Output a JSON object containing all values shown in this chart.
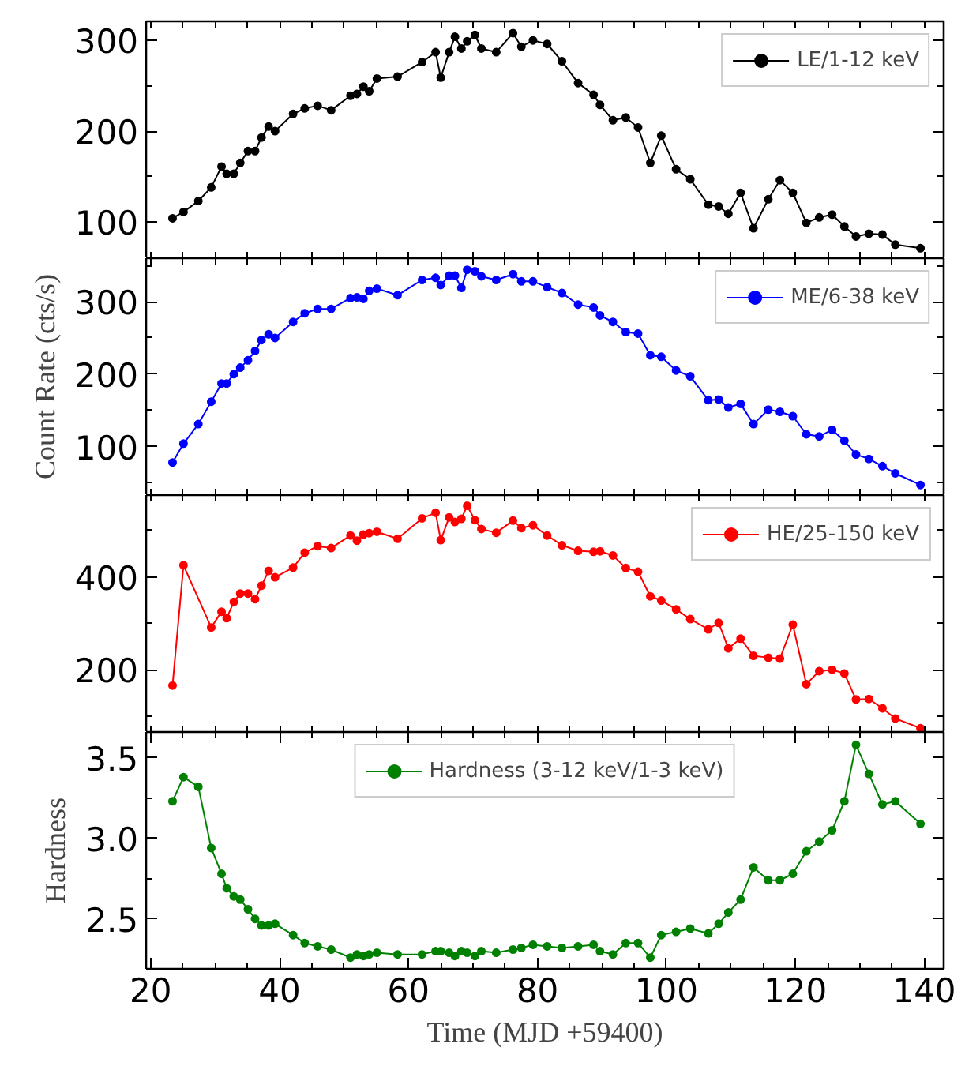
{
  "chart_data": [
    {
      "type": "line",
      "marker": "circle",
      "legend": "top right",
      "grid": false,
      "tick_labels": "y",
      "xlim": [
        19.3,
        143
      ],
      "ylim": [
        60,
        321
      ],
      "xticks": [
        {
          "value": 20,
          "label": null
        },
        {
          "value": 25,
          "label": null
        },
        {
          "value": 30,
          "label": null
        },
        {
          "value": 35,
          "label": null
        },
        {
          "value": 40,
          "label": null
        },
        {
          "value": 45,
          "label": null
        },
        {
          "value": 50,
          "label": null
        },
        {
          "value": 55,
          "label": null
        },
        {
          "value": 60,
          "label": null
        },
        {
          "value": 65,
          "label": null
        },
        {
          "value": 70,
          "label": null
        },
        {
          "value": 75,
          "label": null
        },
        {
          "value": 80,
          "label": null
        },
        {
          "value": 85,
          "label": null
        },
        {
          "value": 90,
          "label": null
        },
        {
          "value": 95,
          "label": null
        },
        {
          "value": 100,
          "label": null
        },
        {
          "value": 105,
          "label": null
        },
        {
          "value": 110,
          "label": null
        },
        {
          "value": 115,
          "label": null
        },
        {
          "value": 120,
          "label": null
        },
        {
          "value": 125,
          "label": null
        },
        {
          "value": 130,
          "label": null
        },
        {
          "value": 135,
          "label": null
        },
        {
          "value": 140,
          "label": null
        }
      ],
      "yticks": [
        {
          "value": 100,
          "label": "100"
        },
        {
          "value": 150,
          "label": null
        },
        {
          "value": 200,
          "label": "200"
        },
        {
          "value": 250,
          "label": null
        },
        {
          "value": 300,
          "label": "300"
        }
      ],
      "x": [
        23.4,
        25.1,
        27.4,
        29.4,
        31.0,
        31.8,
        32.9,
        33.9,
        35.1,
        36.2,
        37.2,
        38.3,
        39.3,
        42.1,
        43.9,
        45.9,
        48.0,
        51.0,
        52.0,
        53.0,
        53.9,
        55.1,
        58.3,
        62.1,
        64.2,
        65.0,
        66.3,
        67.2,
        68.2,
        69.1,
        70.3,
        71.3,
        73.6,
        76.2,
        77.5,
        79.3,
        81.5,
        83.8,
        86.3,
        88.7,
        89.7,
        91.7,
        93.7,
        95.6,
        97.5,
        99.2,
        101.5,
        103.7,
        106.5,
        108.1,
        109.6,
        111.5,
        113.5,
        115.8,
        117.6,
        119.6,
        121.7,
        123.7,
        125.7,
        127.6,
        129.4,
        131.4,
        133.5,
        135.5,
        139.4
      ],
      "series": [
        {
          "name": "LE/1-12 keV",
          "color": "#000000",
          "values": [
            104,
            111,
            123,
            138,
            161,
            153,
            153,
            165,
            178,
            178,
            193,
            205,
            200,
            219,
            225,
            228,
            223,
            239,
            241,
            249,
            244,
            258,
            260,
            276,
            287,
            259,
            287,
            304,
            291,
            299,
            306,
            291,
            287,
            308,
            293,
            300,
            296,
            277,
            253,
            240,
            229,
            212,
            215,
            204,
            165,
            195,
            158,
            147,
            119,
            117,
            109,
            132,
            93,
            125,
            146,
            132,
            99,
            105,
            108,
            95,
            84,
            87,
            86,
            75,
            71
          ]
        }
      ]
    },
    {
      "type": "line",
      "marker": "circle",
      "legend": "top right",
      "grid": false,
      "tick_labels": "y",
      "ylabel": "Count Rate (cts/s)",
      "xlim": [
        19.3,
        143
      ],
      "ylim": [
        33,
        360
      ],
      "xticks": [
        {
          "value": 20,
          "label": null
        },
        {
          "value": 25,
          "label": null
        },
        {
          "value": 30,
          "label": null
        },
        {
          "value": 35,
          "label": null
        },
        {
          "value": 40,
          "label": null
        },
        {
          "value": 45,
          "label": null
        },
        {
          "value": 50,
          "label": null
        },
        {
          "value": 55,
          "label": null
        },
        {
          "value": 60,
          "label": null
        },
        {
          "value": 65,
          "label": null
        },
        {
          "value": 70,
          "label": null
        },
        {
          "value": 75,
          "label": null
        },
        {
          "value": 80,
          "label": null
        },
        {
          "value": 85,
          "label": null
        },
        {
          "value": 90,
          "label": null
        },
        {
          "value": 95,
          "label": null
        },
        {
          "value": 100,
          "label": null
        },
        {
          "value": 105,
          "label": null
        },
        {
          "value": 110,
          "label": null
        },
        {
          "value": 115,
          "label": null
        },
        {
          "value": 120,
          "label": null
        },
        {
          "value": 125,
          "label": null
        },
        {
          "value": 130,
          "label": null
        },
        {
          "value": 135,
          "label": null
        },
        {
          "value": 140,
          "label": null
        }
      ],
      "yticks": [
        {
          "value": 50,
          "label": null
        },
        {
          "value": 100,
          "label": "100"
        },
        {
          "value": 150,
          "label": null
        },
        {
          "value": 200,
          "label": "200"
        },
        {
          "value": 250,
          "label": null
        },
        {
          "value": 300,
          "label": "300"
        },
        {
          "value": 350,
          "label": null
        }
      ],
      "x": [
        23.4,
        25.1,
        27.4,
        29.4,
        31.0,
        31.8,
        32.9,
        33.9,
        35.1,
        36.2,
        37.2,
        38.3,
        39.3,
        42.1,
        43.9,
        45.9,
        48.0,
        51.0,
        52.0,
        53.0,
        53.9,
        55.1,
        58.3,
        62.1,
        64.2,
        65.0,
        66.3,
        67.2,
        68.2,
        69.1,
        70.3,
        71.3,
        73.6,
        76.2,
        77.5,
        79.3,
        81.5,
        83.8,
        86.3,
        88.7,
        89.7,
        91.7,
        93.7,
        95.6,
        97.5,
        99.2,
        101.5,
        103.7,
        106.5,
        108.1,
        109.6,
        111.5,
        113.5,
        115.8,
        117.6,
        119.6,
        121.7,
        123.7,
        125.7,
        127.6,
        129.4,
        131.4,
        133.5,
        135.5,
        139.4
      ],
      "series": [
        {
          "name": "ME/6-38 keV",
          "color": "#0000ff",
          "values": [
            78,
            104,
            131,
            162,
            187,
            187,
            200,
            209,
            219,
            232,
            247,
            255,
            250,
            272,
            284,
            290,
            290,
            305,
            306,
            304,
            315,
            318,
            309,
            330,
            333,
            323,
            336,
            336,
            319,
            344,
            342,
            335,
            330,
            338,
            328,
            328,
            320,
            312,
            296,
            292,
            281,
            272,
            258,
            256,
            226,
            224,
            205,
            197,
            164,
            165,
            154,
            159,
            131,
            151,
            148,
            142,
            117,
            114,
            123,
            108,
            89,
            83,
            73,
            63,
            47
          ]
        }
      ]
    },
    {
      "type": "line",
      "marker": "circle",
      "legend": "top right",
      "grid": false,
      "tick_labels": "y",
      "xlim": [
        19.3,
        143
      ],
      "ylim": [
        66,
        576
      ],
      "xticks": [
        {
          "value": 20,
          "label": null
        },
        {
          "value": 25,
          "label": null
        },
        {
          "value": 30,
          "label": null
        },
        {
          "value": 35,
          "label": null
        },
        {
          "value": 40,
          "label": null
        },
        {
          "value": 45,
          "label": null
        },
        {
          "value": 50,
          "label": null
        },
        {
          "value": 55,
          "label": null
        },
        {
          "value": 60,
          "label": null
        },
        {
          "value": 65,
          "label": null
        },
        {
          "value": 70,
          "label": null
        },
        {
          "value": 75,
          "label": null
        },
        {
          "value": 80,
          "label": null
        },
        {
          "value": 85,
          "label": null
        },
        {
          "value": 90,
          "label": null
        },
        {
          "value": 95,
          "label": null
        },
        {
          "value": 100,
          "label": null
        },
        {
          "value": 105,
          "label": null
        },
        {
          "value": 110,
          "label": null
        },
        {
          "value": 115,
          "label": null
        },
        {
          "value": 120,
          "label": null
        },
        {
          "value": 125,
          "label": null
        },
        {
          "value": 130,
          "label": null
        },
        {
          "value": 135,
          "label": null
        },
        {
          "value": 140,
          "label": null
        }
      ],
      "yticks": [
        {
          "value": 100,
          "label": null
        },
        {
          "value": 200,
          "label": "200"
        },
        {
          "value": 300,
          "label": null
        },
        {
          "value": 400,
          "label": "400"
        },
        {
          "value": 500,
          "label": null
        }
      ],
      "x": [
        23.4,
        25.1,
        29.4,
        31.0,
        31.8,
        32.9,
        33.9,
        35.1,
        36.2,
        37.2,
        38.3,
        39.3,
        42.1,
        43.9,
        45.9,
        48.0,
        51.0,
        52.0,
        53.0,
        53.9,
        55.1,
        58.3,
        62.1,
        64.2,
        65.0,
        66.3,
        67.2,
        68.2,
        69.1,
        70.3,
        71.3,
        73.6,
        76.2,
        77.5,
        79.3,
        81.5,
        83.8,
        86.3,
        88.7,
        89.7,
        91.7,
        93.7,
        95.6,
        97.5,
        99.2,
        101.5,
        103.7,
        106.5,
        108.1,
        109.6,
        111.5,
        113.5,
        115.8,
        117.6,
        119.6,
        121.7,
        123.7,
        125.7,
        127.6,
        129.4,
        131.4,
        133.5,
        135.5,
        139.4
      ],
      "series": [
        {
          "name": "HE/25-150 keV",
          "color": "#ff0000",
          "values": [
            166,
            425,
            291,
            325,
            311,
            346,
            364,
            364,
            352,
            381,
            413,
            399,
            420,
            452,
            466,
            462,
            489,
            478,
            491,
            494,
            497,
            482,
            526,
            538,
            479,
            528,
            518,
            525,
            553,
            522,
            503,
            495,
            521,
            505,
            511,
            489,
            468,
            456,
            454,
            455,
            446,
            419,
            411,
            358,
            349,
            330,
            309,
            287,
            301,
            246,
            267,
            230,
            226,
            224,
            297,
            169,
            197,
            200,
            192,
            136,
            137,
            117,
            95,
            74
          ]
        }
      ]
    },
    {
      "type": "line",
      "marker": "circle",
      "legend": "top",
      "grid": false,
      "xlabel": "Time (MJD +59400)",
      "ylabel": "Hardness",
      "xlim": [
        19.3,
        143
      ],
      "ylim": [
        2.19,
        3.66
      ],
      "xticks": [
        {
          "value": 20,
          "label": "20"
        },
        {
          "value": 25,
          "label": null
        },
        {
          "value": 30,
          "label": null
        },
        {
          "value": 35,
          "label": null
        },
        {
          "value": 40,
          "label": "40"
        },
        {
          "value": 45,
          "label": null
        },
        {
          "value": 50,
          "label": null
        },
        {
          "value": 55,
          "label": null
        },
        {
          "value": 60,
          "label": "60"
        },
        {
          "value": 65,
          "label": null
        },
        {
          "value": 70,
          "label": null
        },
        {
          "value": 75,
          "label": null
        },
        {
          "value": 80,
          "label": "80"
        },
        {
          "value": 85,
          "label": null
        },
        {
          "value": 90,
          "label": null
        },
        {
          "value": 95,
          "label": null
        },
        {
          "value": 100,
          "label": "100"
        },
        {
          "value": 105,
          "label": null
        },
        {
          "value": 110,
          "label": null
        },
        {
          "value": 115,
          "label": null
        },
        {
          "value": 120,
          "label": "120"
        },
        {
          "value": 125,
          "label": null
        },
        {
          "value": 130,
          "label": null
        },
        {
          "value": 135,
          "label": null
        },
        {
          "value": 140,
          "label": "140"
        }
      ],
      "yticks": [
        {
          "value": 2.5,
          "label": "2.5"
        },
        {
          "value": 2.75,
          "label": null
        },
        {
          "value": 3.0,
          "label": "3.0"
        },
        {
          "value": 3.25,
          "label": null
        },
        {
          "value": 3.5,
          "label": "3.5"
        }
      ],
      "x": [
        23.4,
        25.1,
        27.4,
        29.4,
        31.0,
        31.8,
        32.9,
        33.9,
        35.1,
        36.2,
        37.2,
        38.3,
        39.3,
        42.1,
        43.9,
        45.9,
        48.0,
        51.0,
        52.0,
        53.0,
        53.9,
        55.1,
        58.3,
        62.1,
        64.2,
        65.0,
        66.3,
        67.2,
        68.2,
        69.1,
        70.3,
        71.3,
        73.6,
        76.2,
        77.5,
        79.3,
        81.5,
        83.8,
        86.3,
        88.7,
        89.7,
        91.7,
        93.7,
        95.6,
        97.5,
        99.2,
        101.5,
        103.7,
        106.5,
        108.1,
        109.6,
        111.5,
        113.5,
        115.8,
        117.6,
        119.6,
        121.7,
        123.7,
        125.7,
        127.6,
        129.4,
        131.4,
        133.5,
        135.5,
        139.4
      ],
      "series": [
        {
          "name": "Hardness (3-12 keV/1-3 keV)",
          "color": "#008000",
          "values": [
            3.23,
            3.38,
            3.32,
            2.94,
            2.78,
            2.69,
            2.64,
            2.62,
            2.56,
            2.5,
            2.46,
            2.46,
            2.47,
            2.4,
            2.35,
            2.33,
            2.31,
            2.26,
            2.28,
            2.27,
            2.28,
            2.29,
            2.28,
            2.28,
            2.3,
            2.3,
            2.29,
            2.27,
            2.3,
            2.29,
            2.27,
            2.3,
            2.29,
            2.31,
            2.32,
            2.34,
            2.33,
            2.32,
            2.33,
            2.34,
            2.3,
            2.28,
            2.35,
            2.35,
            2.26,
            2.4,
            2.42,
            2.44,
            2.41,
            2.47,
            2.54,
            2.62,
            2.82,
            2.74,
            2.74,
            2.78,
            2.92,
            2.98,
            3.05,
            3.23,
            3.58,
            3.4,
            3.21,
            3.23,
            3.09
          ]
        }
      ]
    }
  ]
}
